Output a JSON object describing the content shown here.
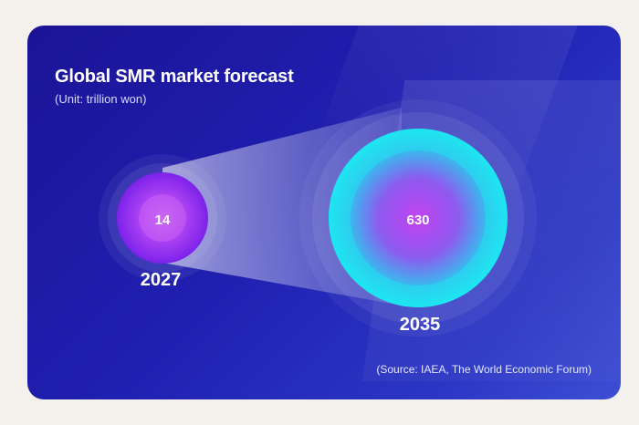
{
  "chart_data": {
    "type": "bubble",
    "title": "Global SMR market forecast",
    "subtitle": "(Unit: trillion won)",
    "source": "(Source: IAEA, The World Economic Forum)",
    "categories": [
      "2027",
      "2035"
    ],
    "values": [
      14,
      630
    ],
    "value_labels": [
      "14",
      "630"
    ],
    "colors": {
      "2027": "#8a2cf0",
      "2035": "#1fe0ee",
      "inner": "#b64ef0",
      "background": "#1f1fb0"
    }
  }
}
